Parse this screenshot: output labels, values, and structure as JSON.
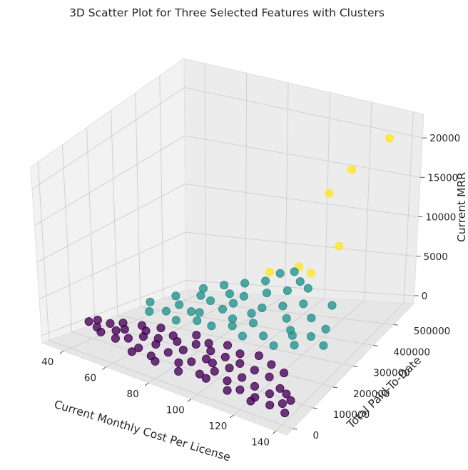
{
  "chart_data": {
    "type": "scatter",
    "projection": "3d",
    "title": "3D Scatter Plot for Three Selected Features with Clusters",
    "xlabel": "Current Monthly Cost Per License",
    "ylabel": "Total Paid-To-Date",
    "zlabel": "Current MRR",
    "xticks": [
      "40",
      "60",
      "80",
      "100",
      "120",
      "140"
    ],
    "yticks": [
      "0",
      "100000",
      "200000",
      "300000",
      "400000",
      "500000"
    ],
    "zticks": [
      "0",
      "5000",
      "10000",
      "15000",
      "20000"
    ],
    "xlim": [
      30,
      145
    ],
    "ylim": [
      -30000,
      600000
    ],
    "zlim": [
      -1000,
      23000
    ],
    "grid": true,
    "colormap": "viridis",
    "cluster_colors": [
      "#440154",
      "#21918c",
      "#fde725"
    ],
    "series": [
      {
        "color": "#fde725",
        "points": [
          [
            131,
            581000,
            19600
          ],
          [
            116,
            555000,
            15600
          ],
          [
            105,
            560000,
            12200
          ],
          [
            112,
            545000,
            6500
          ],
          [
            96,
            512000,
            4200
          ],
          [
            104,
            492000,
            4100
          ],
          [
            86,
            470000,
            4000
          ]
        ]
      },
      {
        "color": "#21918c",
        "points": [
          [
            45,
            310000,
            1200
          ],
          [
            52,
            360000,
            1600
          ],
          [
            58,
            320000,
            1400
          ],
          [
            62,
            380000,
            1800
          ],
          [
            66,
            300000,
            1300
          ],
          [
            70,
            350000,
            2000
          ],
          [
            74,
            400000,
            2200
          ],
          [
            78,
            330000,
            1700
          ],
          [
            82,
            390000,
            2400
          ],
          [
            86,
            300000,
            1500
          ],
          [
            90,
            420000,
            2600
          ],
          [
            94,
            360000,
            2100
          ],
          [
            98,
            440000,
            2800
          ],
          [
            102,
            380000,
            2300
          ],
          [
            106,
            460000,
            3000
          ],
          [
            110,
            400000,
            2500
          ],
          [
            114,
            300000,
            1600
          ],
          [
            118,
            360000,
            2000
          ],
          [
            122,
            420000,
            2400
          ],
          [
            128,
            330000,
            1800
          ],
          [
            56,
            280000,
            1100
          ],
          [
            64,
            250000,
            900
          ],
          [
            72,
            270000,
            1000
          ],
          [
            80,
            260000,
            1000
          ],
          [
            88,
            280000,
            1100
          ],
          [
            96,
            250000,
            900
          ],
          [
            104,
            270000,
            1000
          ],
          [
            112,
            240000,
            900
          ],
          [
            120,
            260000,
            1000
          ],
          [
            68,
            430000,
            2500
          ],
          [
            84,
            470000,
            2900
          ],
          [
            100,
            480000,
            3200
          ],
          [
            76,
            450000,
            2700
          ],
          [
            92,
            330000,
            1900
          ],
          [
            108,
            340000,
            1900
          ],
          [
            60,
            410000,
            2100
          ],
          [
            116,
            290000,
            1300
          ],
          [
            124,
            300000,
            1400
          ],
          [
            50,
            260000,
            1000
          ],
          [
            132,
            280000,
            1200
          ],
          [
            88,
            500000,
            3400
          ],
          [
            94,
            510000,
            3600
          ],
          [
            80,
            360000,
            2000
          ],
          [
            96,
            300000,
            1500
          ],
          [
            70,
            300000,
            1400
          ]
        ]
      },
      {
        "color": "#440154",
        "points": [
          [
            34,
            140000,
            200
          ],
          [
            36,
            160000,
            300
          ],
          [
            40,
            120000,
            200
          ],
          [
            44,
            100000,
            150
          ],
          [
            48,
            130000,
            250
          ],
          [
            52,
            90000,
            150
          ],
          [
            56,
            110000,
            200
          ],
          [
            60,
            140000,
            300
          ],
          [
            64,
            80000,
            100
          ],
          [
            68,
            120000,
            250
          ],
          [
            72,
            60000,
            100
          ],
          [
            76,
            100000,
            200
          ],
          [
            80,
            130000,
            300
          ],
          [
            84,
            70000,
            100
          ],
          [
            88,
            90000,
            200
          ],
          [
            92,
            120000,
            300
          ],
          [
            96,
            50000,
            100
          ],
          [
            100,
            80000,
            200
          ],
          [
            104,
            110000,
            300
          ],
          [
            108,
            60000,
            100
          ],
          [
            112,
            90000,
            200
          ],
          [
            116,
            40000,
            100
          ],
          [
            120,
            70000,
            200
          ],
          [
            124,
            30000,
            100
          ],
          [
            128,
            60000,
            200
          ],
          [
            132,
            20000,
            100
          ],
          [
            136,
            40000,
            150
          ],
          [
            140,
            10000,
            100
          ],
          [
            138,
            60000,
            200
          ],
          [
            130,
            90000,
            300
          ],
          [
            42,
            160000,
            300
          ],
          [
            50,
            150000,
            300
          ],
          [
            58,
            170000,
            400
          ],
          [
            66,
            150000,
            350
          ],
          [
            74,
            160000,
            400
          ],
          [
            82,
            170000,
            450
          ],
          [
            90,
            160000,
            400
          ],
          [
            98,
            150000,
            400
          ],
          [
            106,
            140000,
            400
          ],
          [
            114,
            130000,
            400
          ],
          [
            122,
            120000,
            400
          ],
          [
            70,
            180000,
            500
          ],
          [
            86,
            190000,
            500
          ],
          [
            102,
            180000,
            500
          ],
          [
            118,
            170000,
            500
          ],
          [
            62,
            200000,
            600
          ],
          [
            78,
            210000,
            600
          ],
          [
            94,
            200000,
            600
          ],
          [
            110,
            190000,
            600
          ],
          [
            126,
            150000,
            500
          ],
          [
            46,
            180000,
            400
          ],
          [
            54,
            190000,
            500
          ],
          [
            134,
            80000,
            200
          ],
          [
            100,
            40000,
            100
          ],
          [
            88,
            30000,
            100
          ],
          [
            76,
            40000,
            100
          ],
          [
            64,
            50000,
            100
          ],
          [
            112,
            20000,
            100
          ],
          [
            124,
            10000,
            100
          ],
          [
            96,
            110000,
            300
          ]
        ]
      }
    ]
  }
}
